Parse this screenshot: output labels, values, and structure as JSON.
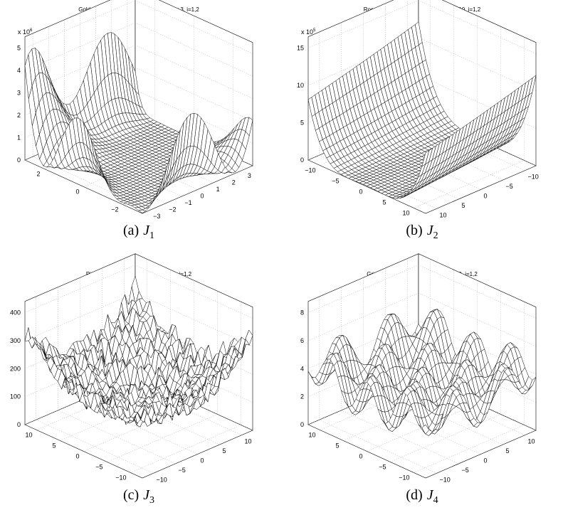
{
  "panels": [
    {
      "title": {
        "pre": "Goldstein−Price function, where −3≤ x",
        "sub": "i",
        "post": "≤ 3, i=1,2"
      },
      "z_scale": {
        "base": "x 10",
        "exp": "6"
      },
      "zticks": [
        "0",
        "1",
        "2",
        "3",
        "4",
        "5"
      ],
      "yticks": [
        "2",
        "0",
        "−2"
      ],
      "xticks": [
        "−3",
        "−2",
        "−1",
        "0",
        "1",
        "2",
        "3"
      ],
      "caption": {
        "label": "(a)",
        "var": "J",
        "sub": "1"
      }
    },
    {
      "title": {
        "pre": "Rosenbrock function, where −10≤ x",
        "sub": "i",
        "post": "≤ 10, i=1,2"
      },
      "z_scale": {
        "base": "x 10",
        "exp": "5"
      },
      "zticks": [
        "0",
        "5",
        "10",
        "15"
      ],
      "yticks": [
        "−10",
        "−5",
        "0",
        "5",
        "10"
      ],
      "xticks": [
        "10",
        "5",
        "0",
        "−5",
        "−10"
      ],
      "caption": {
        "label": "(b)",
        "var": "J",
        "sub": "2"
      }
    },
    {
      "title": {
        "pre": "Pinter's function, where −10≤ x",
        "sub": "i",
        "post": "≤ 10, i=1,2"
      },
      "zticks": [
        "0",
        "100",
        "200",
        "300",
        "400"
      ],
      "yticks": [
        "10",
        "5",
        "0",
        "−5",
        "−10"
      ],
      "xticks": [
        "−10",
        "−5",
        "0",
        "5",
        "10"
      ],
      "caption": {
        "label": "(c)",
        "var": "J",
        "sub": "3"
      }
    },
    {
      "title": {
        "pre": "Griewank function, where −10≤ x",
        "sub": "i",
        "post": "≤ 10, i=1,2"
      },
      "zticks": [
        "0",
        "2",
        "4",
        "6",
        "8"
      ],
      "yticks": [
        "10",
        "5",
        "0",
        "−5",
        "−10"
      ],
      "xticks": [
        "−10",
        "−5",
        "0",
        "5",
        "10"
      ],
      "caption": {
        "label": "(d)",
        "var": "J",
        "sub": "4"
      }
    }
  ]
}
